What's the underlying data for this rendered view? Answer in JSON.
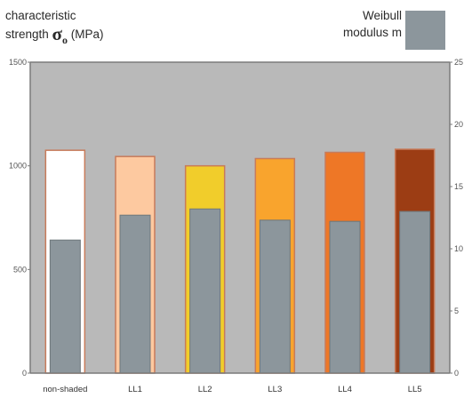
{
  "left_label": {
    "line1": "characteristic",
    "line2_pre": "strength ",
    "symbol": "σ",
    "subscript": "o",
    "unit": " (MPa)"
  },
  "right_label": {
    "line1": "Weibull",
    "line2": "modulus m"
  },
  "colors": {
    "plot_bg": "#b9b9b9",
    "frame": "#7a7a7a",
    "weibull_bar": "#8c969c",
    "strength_bar_outline": "#c77b5a"
  },
  "chart_data": {
    "type": "bar",
    "categories": [
      "non-shaded",
      "LL1",
      "LL2",
      "LL3",
      "LL4",
      "LL5"
    ],
    "series": [
      {
        "name": "characteristic strength σo (MPa)",
        "axis": "left",
        "values": [
          1075,
          1045,
          1000,
          1035,
          1065,
          1080
        ],
        "colors": [
          "#ffffff",
          "#fdc9a0",
          "#f1cd2b",
          "#f9a42d",
          "#ee7726",
          "#9c3d14"
        ]
      },
      {
        "name": "Weibull modulus m",
        "axis": "right",
        "values": [
          10.7,
          12.7,
          13.2,
          12.3,
          12.2,
          13.0
        ],
        "color": "#8c969c"
      }
    ],
    "left_axis": {
      "min": 0,
      "max": 1500,
      "ticks": [
        "0",
        "500",
        "1000",
        "1500"
      ]
    },
    "right_axis": {
      "min": 0,
      "max": 25,
      "ticks": [
        "0",
        "5",
        "10",
        "15",
        "20",
        "25"
      ]
    },
    "grid": false
  }
}
